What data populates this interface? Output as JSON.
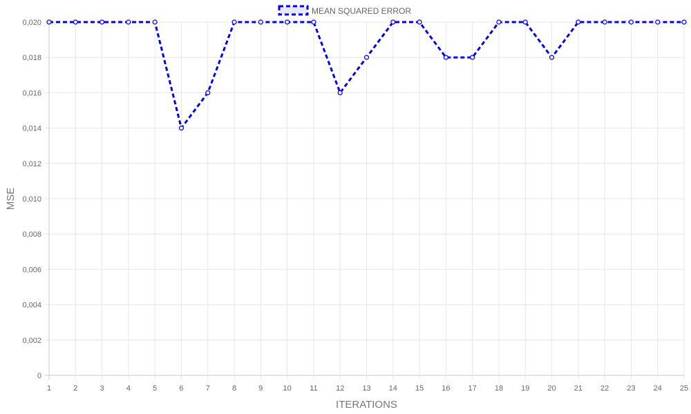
{
  "chart_data": {
    "type": "line",
    "x": [
      "1",
      "2",
      "3",
      "4",
      "5",
      "6",
      "7",
      "8",
      "9",
      "10",
      "11",
      "12",
      "13",
      "14",
      "15",
      "16",
      "17",
      "18",
      "19",
      "20",
      "21",
      "22",
      "23",
      "24",
      "25"
    ],
    "series": [
      {
        "name": "MEAN SQUARED ERROR",
        "color": "#0000ee",
        "line_style": "dashed",
        "values": [
          0.02,
          0.02,
          0.02,
          0.02,
          0.02,
          0.014,
          0.016,
          0.02,
          0.02,
          0.02,
          0.02,
          0.016,
          0.018,
          0.02,
          0.02,
          0.018,
          0.018,
          0.02,
          0.02,
          0.018,
          0.02,
          0.02,
          0.02,
          0.02,
          0.02
        ]
      }
    ],
    "xlabel": "ITERATIONS",
    "ylabel": "MSE",
    "ylim": [
      0,
      0.02
    ],
    "yticks": [
      "0",
      "0,002",
      "0,004",
      "0,006",
      "0,008",
      "0,010",
      "0,012",
      "0,014",
      "0,016",
      "0,018",
      "0,020"
    ],
    "grid": true,
    "legend_position": "top-center"
  }
}
